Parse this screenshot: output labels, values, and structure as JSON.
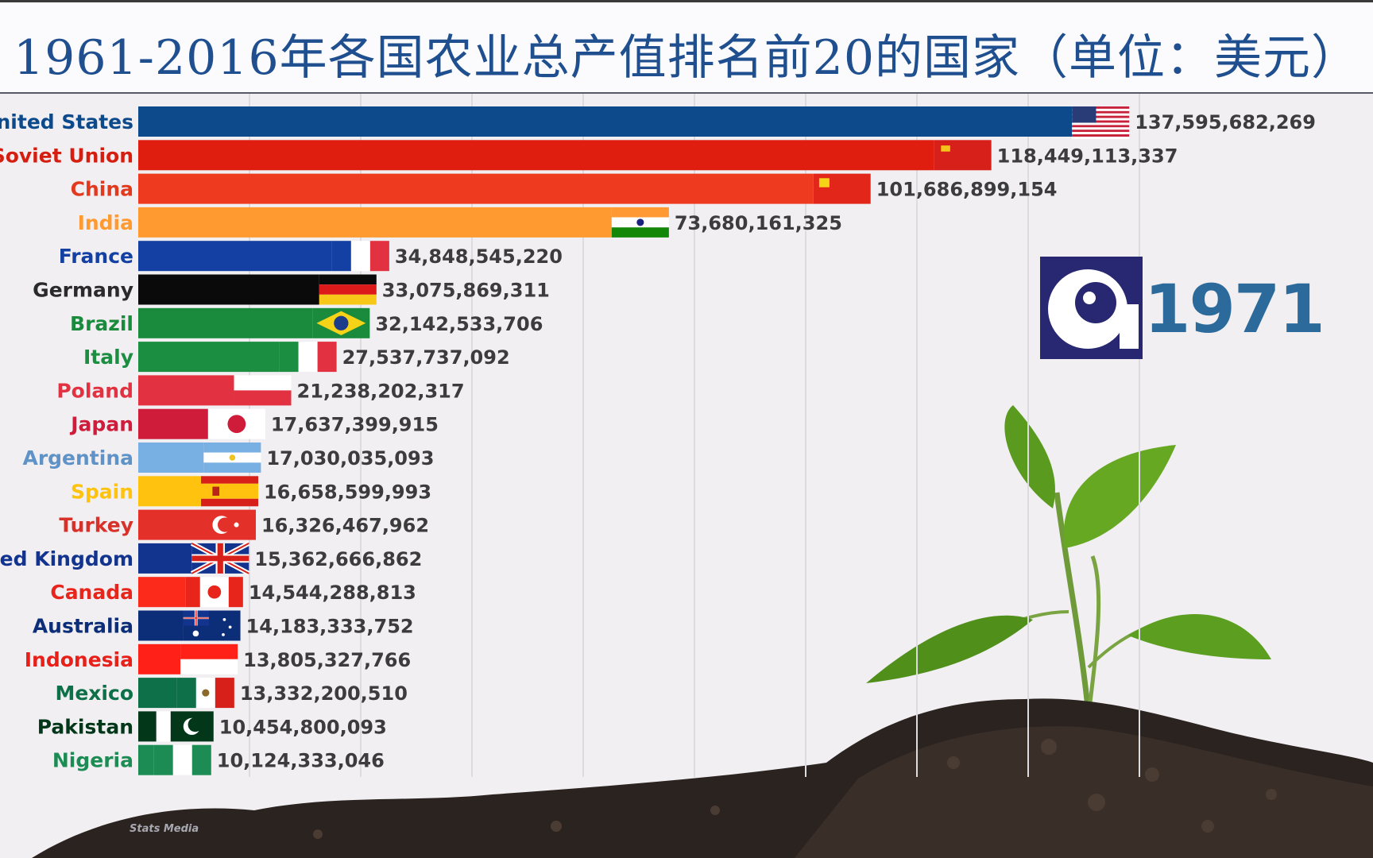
{
  "title": "1961-2016年各国农业总产值排名前20的国家（单位：美元）",
  "year": "1971",
  "watermark": "Stats Media",
  "chart_data": {
    "type": "bar",
    "orientation": "horizontal",
    "title": "1961-2016年各国农业总产值排名前20的国家（单位：美元）",
    "xlim": [
      0,
      140000000000
    ],
    "grid": true,
    "categories": [
      "United States",
      "Soviet Union",
      "China",
      "India",
      "France",
      "Germany",
      "Brazil",
      "Italy",
      "Poland",
      "Japan",
      "Argentina",
      "Spain",
      "Turkey",
      "United Kingdom",
      "Canada",
      "Australia",
      "Indonesia",
      "Mexico",
      "Pakistan",
      "Nigeria"
    ],
    "values": [
      137595682269,
      118449113337,
      101686899154,
      73680161325,
      34848545220,
      33075869311,
      32142533706,
      27537737092,
      21238202317,
      17637399915,
      17030035093,
      16658599993,
      16326467962,
      15362666862,
      14544288813,
      14183333752,
      13805327766,
      13332200510,
      10454800093,
      10124333046
    ],
    "value_labels": [
      "137,595,682,269",
      "118,449,113,337",
      "101,686,899,154",
      "73,680,161,325",
      "34,848,545,220",
      "33,075,869,311",
      "32,142,533,706",
      "27,537,737,092",
      "21,238,202,317",
      "17,637,399,915",
      "17,030,035,093",
      "16,658,599,993",
      "16,326,467,962",
      "15,362,666,862",
      "14,544,288,813",
      "14,183,333,752",
      "13,805,327,766",
      "13,332,200,510",
      "10,454,800,093",
      "10,124,333,046"
    ],
    "colors": [
      "#0d4a8c",
      "#e01e10",
      "#ee3a1e",
      "#ff9a30",
      "#1340a2",
      "#0a0a0a",
      "#1a8a3c",
      "#1c8e42",
      "#e23242",
      "#cf1c3a",
      "#78b0e4",
      "#ffc20e",
      "#e3312a",
      "#13348e",
      "#fb2a1a",
      "#0c2e78",
      "#ff2018",
      "#0e7048",
      "#03371a",
      "#1d8c54"
    ],
    "label_colors": [
      "#0d4a8c",
      "#d51e10",
      "#e23a1e",
      "#ff9a30",
      "#1340a2",
      "#2a2a2a",
      "#1a8a3c",
      "#1c8e42",
      "#e23242",
      "#cf1c3a",
      "#5f93c8",
      "#ffc20e",
      "#d8312a",
      "#13348e",
      "#e8251a",
      "#0c2e78",
      "#e8201a",
      "#0e7048",
      "#03371a",
      "#1d8c54"
    ],
    "icons": [
      "flag-us-icon",
      "flag-ussr-icon",
      "flag-cn-icon",
      "flag-in-icon",
      "flag-fr-icon",
      "flag-de-icon",
      "flag-br-icon",
      "flag-it-icon",
      "flag-pl-icon",
      "flag-jp-icon",
      "flag-ar-icon",
      "flag-es-icon",
      "flag-tr-icon",
      "flag-gb-icon",
      "flag-ca-icon",
      "flag-au-icon",
      "flag-id-icon",
      "flag-mx-icon",
      "flag-pk-icon",
      "flag-ng-icon"
    ]
  }
}
